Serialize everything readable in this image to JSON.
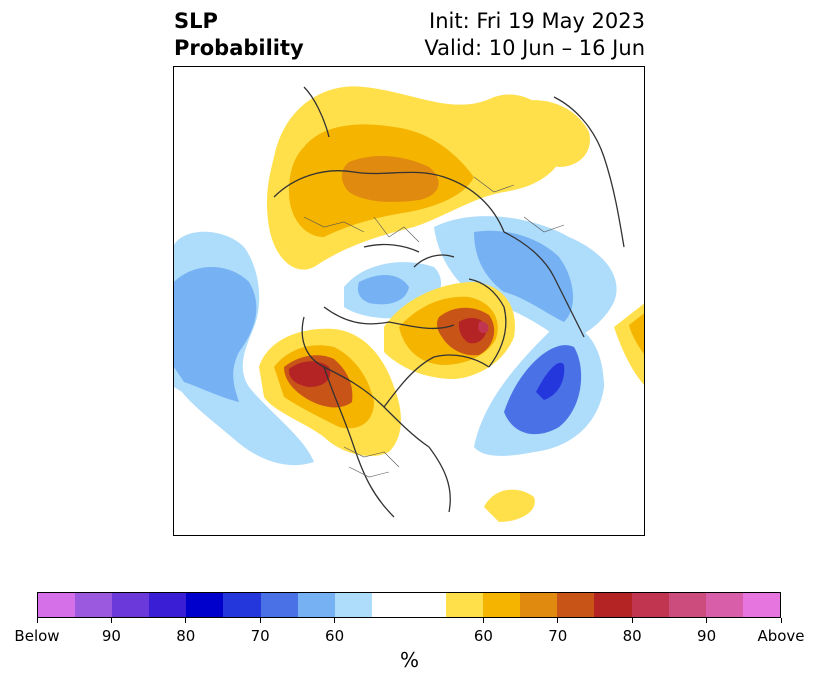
{
  "header": {
    "variable_line1": "SLP",
    "variable_line2": "Probability",
    "init_text": "Init: Fri 19 May 2023",
    "valid_text": "Valid: 10 Jun – 16 Jun"
  },
  "map": {
    "projection": "north-polar",
    "anomalies": [
      {
        "region": "Alaska / Bering",
        "sign": "below",
        "level": "60-65"
      },
      {
        "region": "North Pacific (east of Japan)",
        "sign": "below",
        "level": "60-70"
      },
      {
        "region": "Siberia / Arctic Russia",
        "sign": "below",
        "level": "60-70"
      },
      {
        "region": "Western North America / Gulf of Alaska",
        "sign": "above",
        "level": "75-80"
      },
      {
        "region": "Greenland / Canadian Arctic",
        "sign": "above",
        "level": "75-85"
      },
      {
        "region": "Europe / Scandinavia",
        "sign": "above",
        "level": "60-70"
      },
      {
        "region": "North Atlantic",
        "sign": "below",
        "level": "75-80"
      },
      {
        "region": "Central/Eastern Asia",
        "sign": "above",
        "level": "60-70"
      }
    ]
  },
  "colorbar": {
    "unit": "%",
    "tick_labels": [
      "Below",
      "90",
      "80",
      "70",
      "60",
      "60",
      "70",
      "80",
      "90",
      "Above"
    ],
    "colors": [
      "#d670e8",
      "#9b59e0",
      "#6b38d9",
      "#3a1ed6",
      "#0000cc",
      "#2437dd",
      "#4a72e6",
      "#76b2f3",
      "#aedcfb",
      "#ffffff",
      "#ffffff",
      "#ffe04a",
      "#f5b400",
      "#e08a10",
      "#c85418",
      "#b42424",
      "#c23550",
      "#cc4c7e",
      "#d85eaa",
      "#e675e0"
    ]
  }
}
